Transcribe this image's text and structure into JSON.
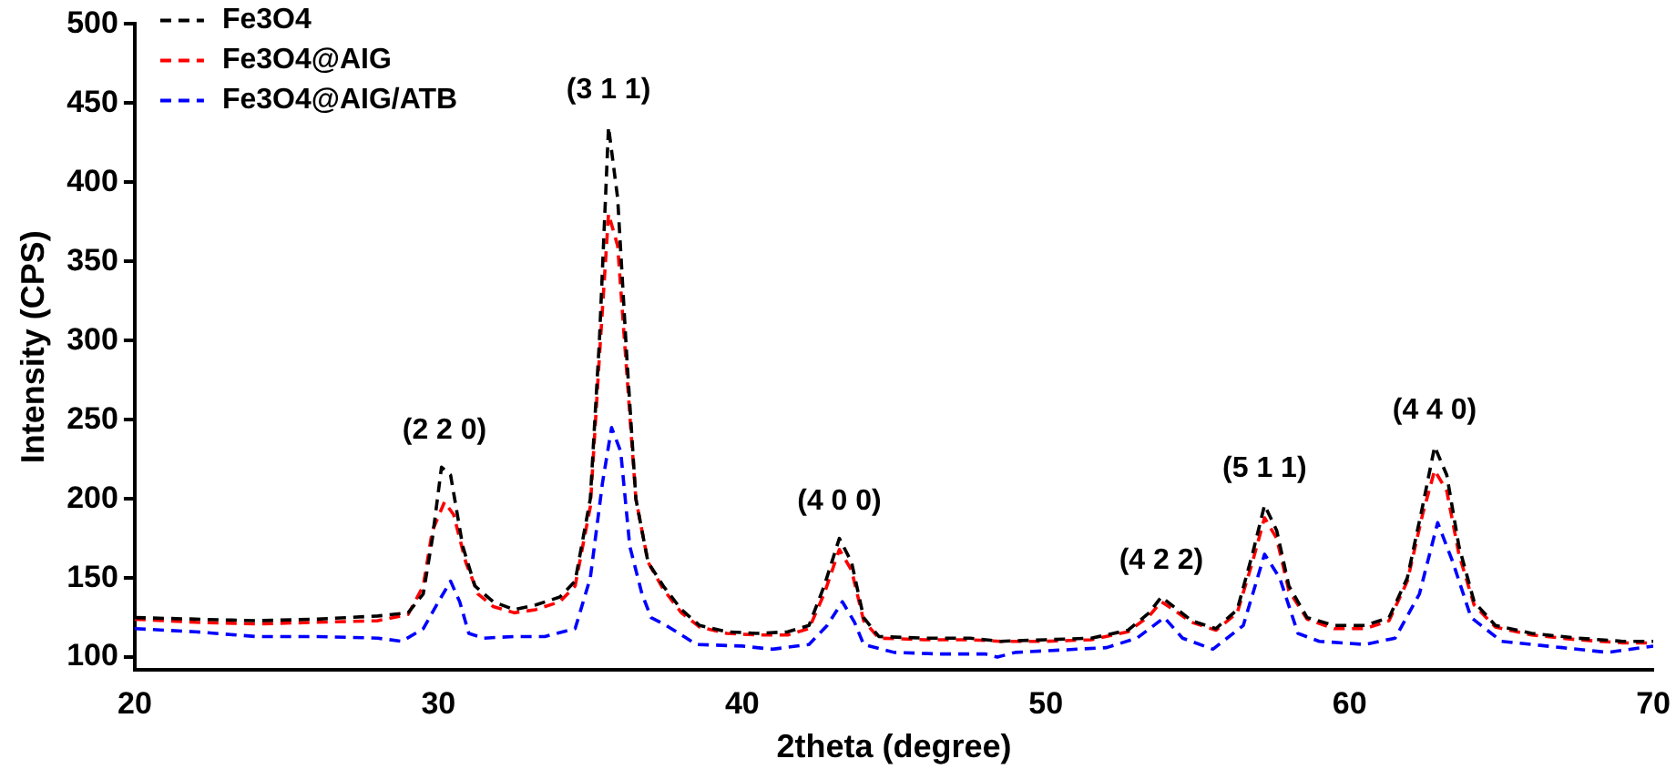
{
  "chart_data": {
    "type": "line",
    "xlabel": "2theta (degree)",
    "ylabel": "Intensity (CPS)",
    "xlim": [
      20,
      70
    ],
    "xticks": [
      20,
      30,
      40,
      50,
      60,
      70
    ],
    "ylim": [
      92,
      500
    ],
    "yticks": [
      100,
      150,
      200,
      250,
      300,
      350,
      400,
      450,
      500
    ],
    "grid": false,
    "legend": "top left",
    "marker": "none",
    "line_style": "dashed",
    "annotations": [
      {
        "text": "(2 2 0)",
        "x": 30.2,
        "y": 220
      },
      {
        "text": "(3 1 1)",
        "x": 35.6,
        "y": 435
      },
      {
        "text": "(4 0 0)",
        "x": 43.2,
        "y": 175
      },
      {
        "text": "(4 2 2)",
        "x": 53.8,
        "y": 138
      },
      {
        "text": "(5 1 1)",
        "x": 57.2,
        "y": 196
      },
      {
        "text": "(4 4 0)",
        "x": 62.8,
        "y": 233
      }
    ],
    "series": [
      {
        "name": "Fe3O4",
        "color": "#000000",
        "x": [
          20,
          22,
          24,
          26,
          28,
          29,
          29.5,
          29.8,
          30.1,
          30.4,
          30.8,
          31.2,
          31.8,
          32.5,
          33.2,
          34,
          34.5,
          35,
          35.3,
          35.6,
          35.9,
          36.2,
          36.5,
          36.9,
          37.4,
          38,
          38.6,
          39.5,
          40.5,
          41.5,
          42.2,
          42.7,
          43.2,
          43.6,
          44,
          44.5,
          46,
          47.5,
          48.5,
          50,
          51.5,
          52.7,
          53.4,
          53.8,
          54.2,
          54.8,
          55.6,
          56.3,
          56.8,
          57.2,
          57.6,
          58,
          58.6,
          59.5,
          60.5,
          61.3,
          61.9,
          62.4,
          62.8,
          63.2,
          63.6,
          64.1,
          64.8,
          66,
          67.5,
          69,
          70
        ],
        "values": [
          125,
          124,
          123,
          124,
          126,
          128,
          140,
          175,
          220,
          215,
          170,
          145,
          135,
          130,
          133,
          138,
          148,
          200,
          300,
          435,
          390,
          290,
          200,
          160,
          145,
          130,
          120,
          116,
          115,
          116,
          120,
          145,
          175,
          160,
          125,
          113,
          112,
          112,
          110,
          111,
          112,
          117,
          128,
          138,
          132,
          123,
          118,
          130,
          165,
          196,
          180,
          145,
          125,
          120,
          120,
          125,
          150,
          195,
          233,
          215,
          170,
          135,
          120,
          115,
          112,
          110,
          110
        ]
      },
      {
        "name": "Fe3O4@AIG",
        "color": "#ff0000",
        "x": [
          20,
          22,
          24,
          26,
          28,
          29,
          29.5,
          29.8,
          30.2,
          30.5,
          30.9,
          31.3,
          31.8,
          32.5,
          33.2,
          34,
          34.5,
          35,
          35.3,
          35.6,
          35.9,
          36.2,
          36.5,
          36.9,
          37.4,
          38,
          38.6,
          39.5,
          40.5,
          41.5,
          42.2,
          42.7,
          43.2,
          43.6,
          44,
          44.5,
          46,
          47.5,
          48.5,
          50,
          51.5,
          52.7,
          53.4,
          53.8,
          54.2,
          54.8,
          55.6,
          56.3,
          56.8,
          57.2,
          57.6,
          58,
          58.6,
          59.5,
          60.5,
          61.3,
          61.9,
          62.4,
          62.8,
          63.2,
          63.6,
          64.1,
          64.8,
          66,
          67.5,
          69,
          70
        ],
        "values": [
          124,
          122,
          121,
          122,
          123,
          127,
          145,
          180,
          198,
          190,
          160,
          140,
          132,
          128,
          130,
          135,
          145,
          195,
          290,
          380,
          360,
          280,
          200,
          160,
          143,
          128,
          119,
          115,
          114,
          114,
          118,
          140,
          168,
          155,
          123,
          112,
          111,
          111,
          110,
          110,
          111,
          116,
          126,
          135,
          130,
          122,
          117,
          128,
          160,
          188,
          175,
          142,
          124,
          118,
          118,
          123,
          148,
          190,
          218,
          205,
          165,
          133,
          119,
          114,
          111,
          109,
          109
        ]
      },
      {
        "name": "Fe3O4@AIG/ATB",
        "color": "#0000ff",
        "x": [
          20,
          22,
          24,
          26,
          28,
          28.8,
          29.5,
          30,
          30.4,
          30.7,
          31,
          31.5,
          32.5,
          33.5,
          34.5,
          35,
          35.4,
          35.7,
          36,
          36.3,
          36.7,
          37,
          37.5,
          38.5,
          40,
          41,
          42.2,
          42.8,
          43.3,
          43.7,
          44,
          45,
          46.5,
          48,
          48.4,
          49,
          50,
          52,
          53,
          53.9,
          54.5,
          55.5,
          56.5,
          57.2,
          57.7,
          58.3,
          59,
          60.5,
          61.5,
          62.3,
          62.9,
          63.4,
          64,
          65,
          67,
          68.5,
          70
        ],
        "values": [
          118,
          116,
          113,
          113,
          112,
          110,
          118,
          135,
          148,
          135,
          115,
          112,
          113,
          113,
          118,
          150,
          210,
          245,
          230,
          170,
          140,
          125,
          120,
          108,
          107,
          105,
          108,
          120,
          135,
          122,
          108,
          103,
          102,
          102,
          100,
          103,
          104,
          106,
          112,
          125,
          112,
          105,
          120,
          165,
          150,
          115,
          110,
          108,
          112,
          140,
          185,
          160,
          125,
          110,
          106,
          103,
          107
        ]
      }
    ]
  }
}
